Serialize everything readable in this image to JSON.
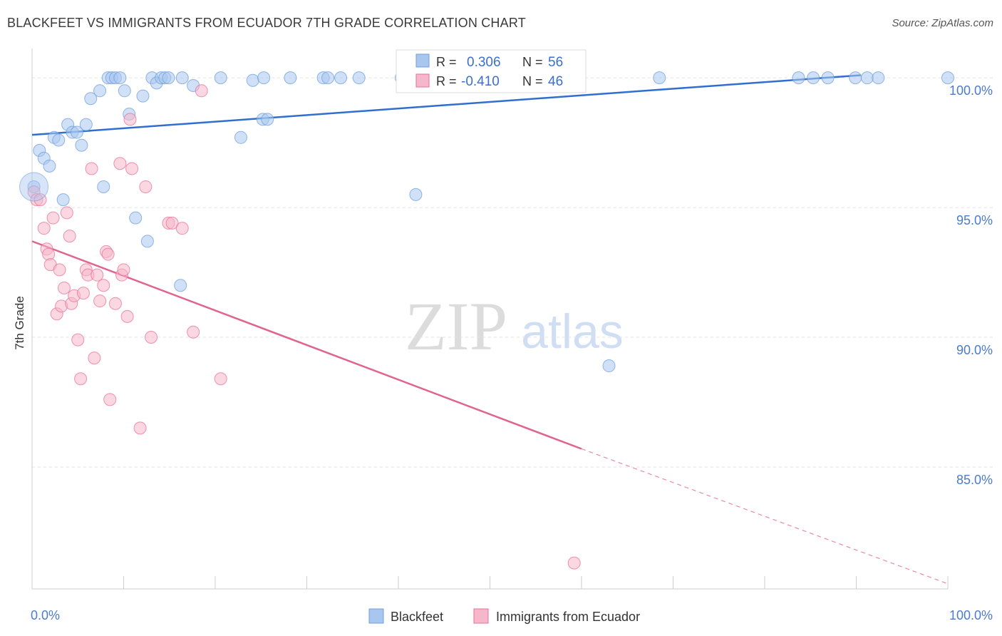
{
  "header": {
    "title": "BLACKFEET VS IMMIGRANTS FROM ECUADOR 7TH GRADE CORRELATION CHART",
    "source": "Source: ZipAtlas.com"
  },
  "watermark": {
    "zip": "ZIP",
    "atlas": "atlas"
  },
  "stats": [
    {
      "r_label": "R =",
      "r_value": "0.306",
      "n_label": "N =",
      "n_value": "56",
      "color": "#6f9fe0"
    },
    {
      "r_label": "R =",
      "r_value": "-0.410",
      "n_label": "N =",
      "n_value": "46",
      "color": "#f29ab5"
    }
  ],
  "chart_data": {
    "type": "scatter",
    "title": "BLACKFEET VS IMMIGRANTS FROM ECUADOR 7TH GRADE CORRELATION CHART",
    "xlabel": "",
    "ylabel": "7th Grade",
    "xlim": [
      0,
      100
    ],
    "ylim": [
      80.3,
      100.8
    ],
    "x_tick_labels": [
      "0.0%",
      "100.0%"
    ],
    "y_ticks": [
      100,
      95,
      90,
      85
    ],
    "y_tick_labels": [
      "100.0%",
      "95.0%",
      "90.0%",
      "85.0%"
    ],
    "grid": true,
    "legend_position": "bottom-center",
    "series": [
      {
        "name": "Blackfeet",
        "color": "#6f9fe0",
        "fill": "#a9c6ef",
        "trend": {
          "x": [
            0,
            90.5
          ],
          "y": [
            97.8,
            100.1
          ],
          "dashed_to": null
        },
        "points": [
          [
            0.2,
            95.8
          ],
          [
            0.8,
            97.2
          ],
          [
            1.3,
            96.9
          ],
          [
            1.9,
            96.6
          ],
          [
            2.4,
            97.7
          ],
          [
            2.9,
            97.6
          ],
          [
            3.4,
            95.3
          ],
          [
            3.9,
            98.2
          ],
          [
            4.4,
            97.9
          ],
          [
            4.9,
            97.9
          ],
          [
            5.4,
            97.4
          ],
          [
            5.9,
            98.2
          ],
          [
            6.4,
            99.2
          ],
          [
            7.4,
            99.5
          ],
          [
            7.8,
            95.8
          ],
          [
            8.3,
            100
          ],
          [
            8.7,
            100
          ],
          [
            9.1,
            100
          ],
          [
            9.6,
            100
          ],
          [
            10.1,
            99.5
          ],
          [
            10.6,
            98.6
          ],
          [
            11.3,
            94.6
          ],
          [
            12.1,
            99.3
          ],
          [
            12.6,
            93.7
          ],
          [
            13.1,
            100
          ],
          [
            13.6,
            99.8
          ],
          [
            14.1,
            100
          ],
          [
            14.5,
            100
          ],
          [
            14.9,
            100
          ],
          [
            16.4,
            100
          ],
          [
            17.6,
            99.7
          ],
          [
            16.2,
            92.0
          ],
          [
            20.6,
            100
          ],
          [
            22.8,
            97.7
          ],
          [
            24.1,
            99.9
          ],
          [
            25.3,
            100
          ],
          [
            25.2,
            98.4
          ],
          [
            25.7,
            98.4
          ],
          [
            28.2,
            100
          ],
          [
            31.8,
            100
          ],
          [
            32.3,
            100
          ],
          [
            33.7,
            100
          ],
          [
            35.7,
            100
          ],
          [
            40.3,
            100
          ],
          [
            41.9,
            95.5
          ],
          [
            47.0,
            100
          ],
          [
            47.5,
            100
          ],
          [
            63.0,
            88.9
          ],
          [
            68.5,
            100
          ],
          [
            83.7,
            100
          ],
          [
            85.3,
            100
          ],
          [
            86.9,
            100
          ],
          [
            89.9,
            100
          ],
          [
            91.2,
            100
          ],
          [
            92.4,
            100
          ],
          [
            100,
            100
          ]
        ]
      },
      {
        "name": "Immigrants from Ecuador",
        "color": "#e8719a",
        "fill": "#f5b7c9",
        "trend": {
          "x": [
            0,
            60
          ],
          "y": [
            93.7,
            85.7
          ],
          "dashed_to": [
            100,
            80.5
          ]
        },
        "points": [
          [
            0.2,
            95.6
          ],
          [
            0.5,
            95.3
          ],
          [
            0.9,
            95.3
          ],
          [
            1.3,
            94.2
          ],
          [
            1.6,
            93.4
          ],
          [
            1.8,
            93.2
          ],
          [
            2.0,
            92.8
          ],
          [
            2.3,
            94.6
          ],
          [
            2.7,
            90.9
          ],
          [
            3.0,
            92.6
          ],
          [
            3.2,
            91.2
          ],
          [
            3.5,
            91.9
          ],
          [
            3.8,
            94.8
          ],
          [
            4.1,
            93.9
          ],
          [
            4.3,
            91.3
          ],
          [
            4.6,
            91.6
          ],
          [
            5.0,
            89.9
          ],
          [
            5.3,
            88.4
          ],
          [
            5.6,
            91.7
          ],
          [
            5.9,
            92.6
          ],
          [
            6.1,
            92.4
          ],
          [
            6.5,
            96.5
          ],
          [
            6.8,
            89.2
          ],
          [
            7.1,
            92.4
          ],
          [
            7.4,
            91.4
          ],
          [
            7.8,
            92.0
          ],
          [
            8.1,
            93.3
          ],
          [
            8.3,
            93.2
          ],
          [
            8.5,
            87.6
          ],
          [
            9.1,
            91.3
          ],
          [
            9.6,
            96.7
          ],
          [
            9.8,
            92.4
          ],
          [
            10.0,
            92.6
          ],
          [
            10.4,
            90.8
          ],
          [
            10.9,
            96.5
          ],
          [
            11.8,
            86.5
          ],
          [
            12.4,
            95.8
          ],
          [
            13.0,
            90.0
          ],
          [
            14.9,
            94.4
          ],
          [
            15.3,
            94.4
          ],
          [
            16.4,
            94.2
          ],
          [
            17.6,
            90.2
          ],
          [
            18.5,
            99.5
          ],
          [
            20.6,
            88.4
          ],
          [
            10.7,
            98.4
          ],
          [
            59.2,
            81.3
          ]
        ]
      }
    ]
  }
}
